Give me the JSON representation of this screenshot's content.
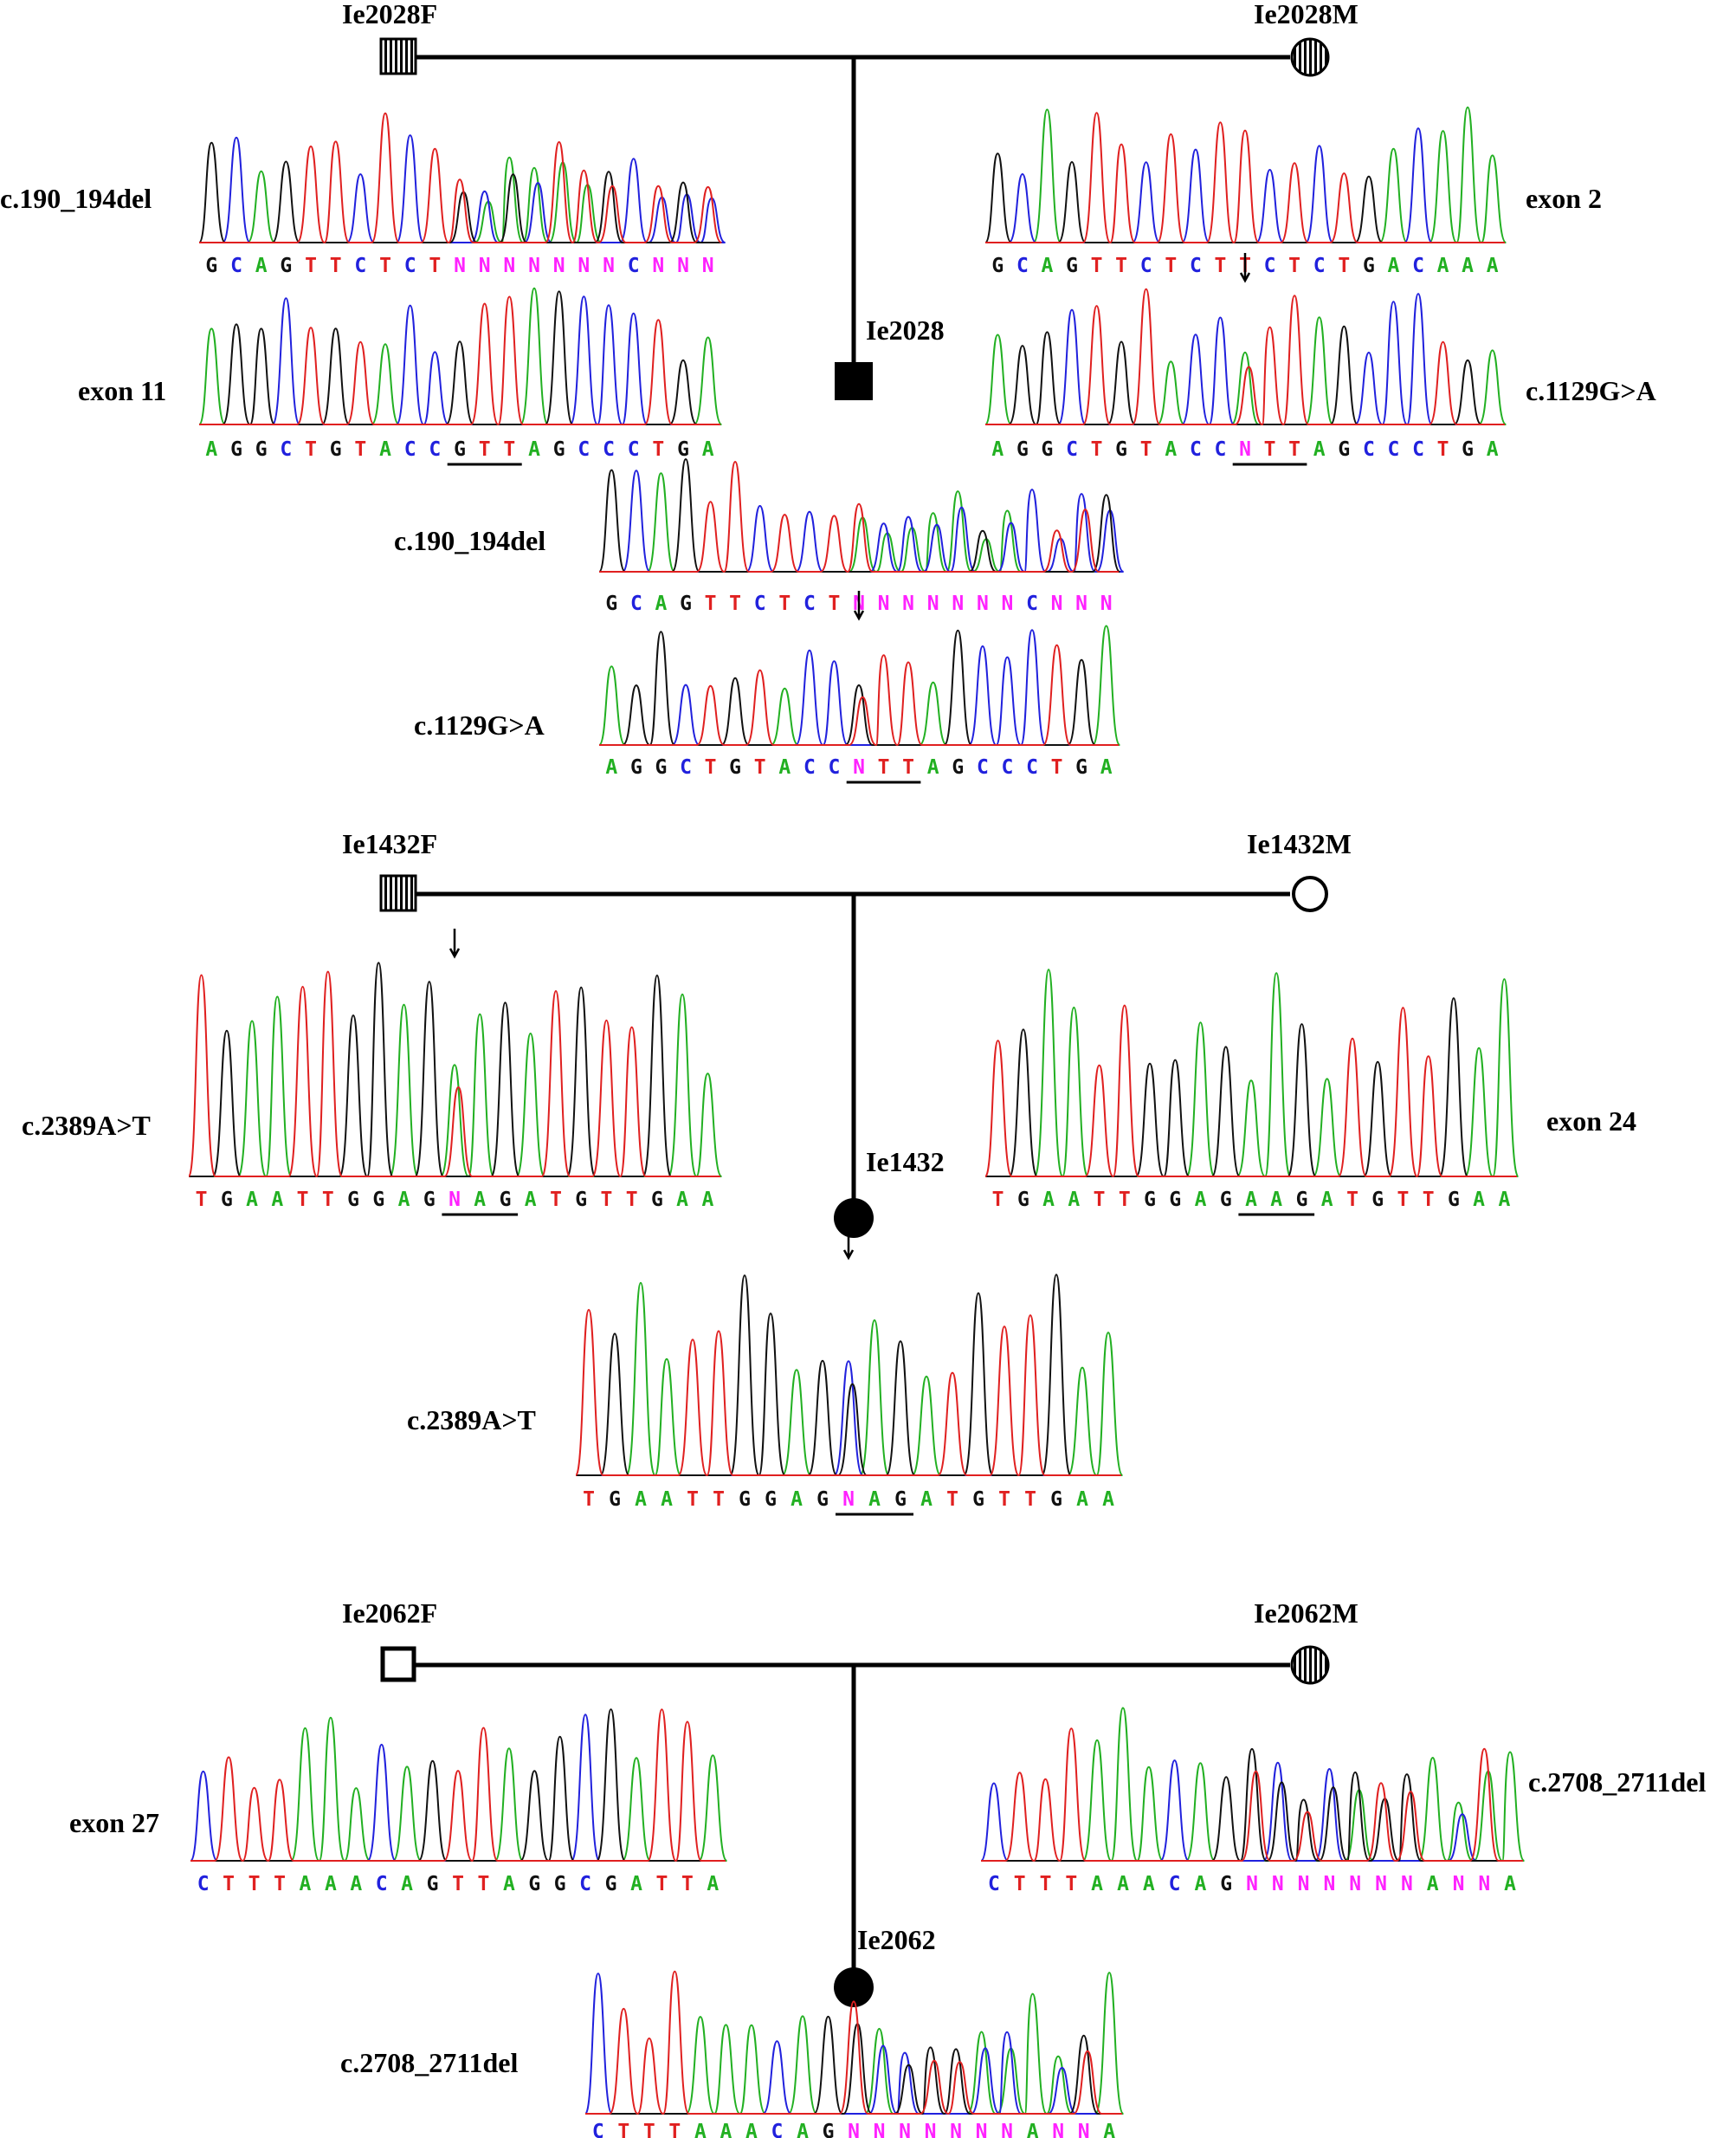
{
  "colors": {
    "A": "#22b022",
    "C": "#2121dd",
    "G": "#111111",
    "T": "#e02020",
    "N": "#ff22ff",
    "line": "#000000"
  },
  "families": [
    {
      "father": {
        "label": "Ie2028F",
        "symbol": "square-striped"
      },
      "mother": {
        "label": "Ie2028M",
        "symbol": "circle-striped"
      },
      "proband": {
        "label": "Ie2028",
        "symbol": "square-filled"
      }
    },
    {
      "father": {
        "label": "Ie1432F",
        "symbol": "square-striped"
      },
      "mother": {
        "label": "Ie1432M",
        "symbol": "circle-open"
      },
      "proband": {
        "label": "Ie1432",
        "symbol": "circle-filled"
      }
    },
    {
      "father": {
        "label": "Ie2062F",
        "symbol": "square-open"
      },
      "mother": {
        "label": "Ie2062M",
        "symbol": "circle-striped"
      },
      "proband": {
        "label": "Ie2062",
        "symbol": "circle-filled"
      }
    }
  ],
  "traces": [
    {
      "id": "t1",
      "label": "c.190_194del",
      "sequence": "GCAGTTCTCTNNNNNNNCNNN",
      "mixed_from": 10
    },
    {
      "id": "t2",
      "label": "exon 2",
      "sequence": "GCAGTTCTCTTCTCTGACAAA",
      "mixed_from": null
    },
    {
      "id": "t3",
      "label": "exon 11",
      "sequence": "AGGCTGTACCGTTAGCCCTGA",
      "mixed_from": null,
      "underline": [
        10,
        12
      ]
    },
    {
      "id": "t4",
      "label": "c.1129G>A",
      "sequence": "AGGCTGTACCNTTAGCCCTGA",
      "mixed_from": null,
      "underline": [
        10,
        12
      ],
      "arrow_at": 10
    },
    {
      "id": "t5",
      "label": "c.190_194del",
      "sequence": "GCAGTTCTCTNNNNNNNCNNN",
      "mixed_from": 10
    },
    {
      "id": "t6",
      "label": "c.1129G>A",
      "sequence": "AGGCTGTACCNTTAGCCCTGA",
      "mixed_from": null,
      "underline": [
        10,
        12
      ],
      "arrow_at": 10
    },
    {
      "id": "t7",
      "label": "c.2389A>T",
      "sequence": "TGAATTGGAGNAGATGTTGAA",
      "mixed_from": null,
      "underline": [
        10,
        12
      ],
      "arrow_at": 10
    },
    {
      "id": "t8",
      "label": "exon 24",
      "sequence": "TGAATTGGAGAAGATGTTGAA",
      "mixed_from": null,
      "underline": [
        10,
        12
      ]
    },
    {
      "id": "t9",
      "label": "c.2389A>T",
      "sequence": "TGAATTGGAGNAGATGTTGAA",
      "mixed_from": null,
      "underline": [
        10,
        12
      ],
      "arrow_at": 10
    },
    {
      "id": "t10",
      "label": "exon 27",
      "sequence": "CTTTAAACAGTTAGGCGATTA",
      "mixed_from": null
    },
    {
      "id": "t11",
      "label": "c.2708_2711del",
      "sequence": "CTTTAAACAGNNNNNNNANNA",
      "mixed_from": 10
    },
    {
      "id": "t12",
      "label": "c.2708_2711del",
      "sequence": "CTTTAAACAGNNNNNNNANNA",
      "mixed_from": 10
    }
  ]
}
